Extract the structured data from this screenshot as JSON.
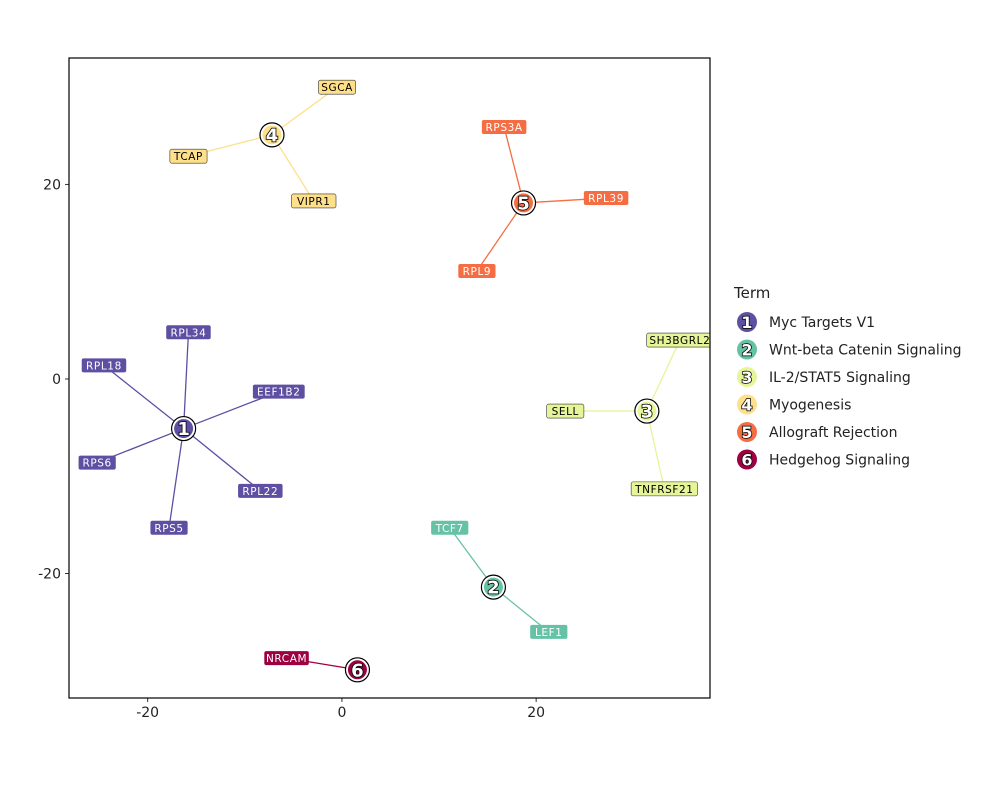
{
  "chart_data": {
    "type": "network",
    "title": "",
    "xlabel": "",
    "ylabel": "",
    "xlim": [
      -28.1,
      37.9
    ],
    "ylim": [
      -32.8,
      33.0
    ],
    "x_ticks": [
      -20,
      0,
      20
    ],
    "y_ticks": [
      -20,
      0,
      20
    ],
    "grid": false,
    "legend": {
      "title": "Term",
      "placement": "right",
      "entries": [
        {
          "id": "1",
          "label": "Myc Targets V1",
          "color": "#5E4FA2",
          "text_color": "#ffffff"
        },
        {
          "id": "2",
          "label": "Wnt-beta Catenin Signaling",
          "color": "#66C2A5",
          "text_color": "#ffffff"
        },
        {
          "id": "3",
          "label": "IL-2/STAT5 Signaling",
          "color": "#E6F598",
          "text_color": "#000000"
        },
        {
          "id": "4",
          "label": "Myogenesis",
          "color": "#FEE08B",
          "text_color": "#000000"
        },
        {
          "id": "5",
          "label": "Allograft Rejection",
          "color": "#F46D43",
          "text_color": "#ffffff"
        },
        {
          "id": "6",
          "label": "Hedgehog Signaling",
          "color": "#9E0142",
          "text_color": "#ffffff"
        }
      ]
    },
    "hubs": [
      {
        "id": "1",
        "x": -16.3,
        "y": -5.1,
        "genes": [
          {
            "name": "RPL34",
            "x": -15.8,
            "y": 4.8
          },
          {
            "name": "RPL18",
            "x": -24.5,
            "y": 1.4
          },
          {
            "name": "EEF1B2",
            "x": -6.5,
            "y": -1.3
          },
          {
            "name": "RPS6",
            "x": -25.2,
            "y": -8.6
          },
          {
            "name": "RPL22",
            "x": -8.4,
            "y": -11.5
          },
          {
            "name": "RPS5",
            "x": -17.8,
            "y": -15.3
          }
        ]
      },
      {
        "id": "2",
        "x": 15.6,
        "y": -21.4,
        "genes": [
          {
            "name": "TCF7",
            "x": 11.1,
            "y": -15.3
          },
          {
            "name": "LEF1",
            "x": 21.3,
            "y": -26.0
          }
        ]
      },
      {
        "id": "3",
        "x": 31.4,
        "y": -3.3,
        "genes": [
          {
            "name": "SH3BGRL2",
            "x": 34.8,
            "y": 4.0
          },
          {
            "name": "SELL",
            "x": 23.0,
            "y": -3.3
          },
          {
            "name": "TNFRSF21",
            "x": 33.2,
            "y": -11.3
          }
        ]
      },
      {
        "id": "4",
        "x": -7.2,
        "y": 25.1,
        "genes": [
          {
            "name": "SGCA",
            "x": -0.5,
            "y": 30.0
          },
          {
            "name": "TCAP",
            "x": -15.8,
            "y": 22.9
          },
          {
            "name": "VIPR1",
            "x": -2.9,
            "y": 18.3
          }
        ]
      },
      {
        "id": "5",
        "x": 18.7,
        "y": 18.1,
        "genes": [
          {
            "name": "RPS3A",
            "x": 16.7,
            "y": 25.9
          },
          {
            "name": "RPL39",
            "x": 27.2,
            "y": 18.6
          },
          {
            "name": "RPL9",
            "x": 13.9,
            "y": 11.1
          }
        ]
      },
      {
        "id": "6",
        "x": 1.6,
        "y": -29.9,
        "genes": [
          {
            "name": "NRCAM",
            "x": -5.7,
            "y": -28.7
          }
        ]
      }
    ]
  }
}
